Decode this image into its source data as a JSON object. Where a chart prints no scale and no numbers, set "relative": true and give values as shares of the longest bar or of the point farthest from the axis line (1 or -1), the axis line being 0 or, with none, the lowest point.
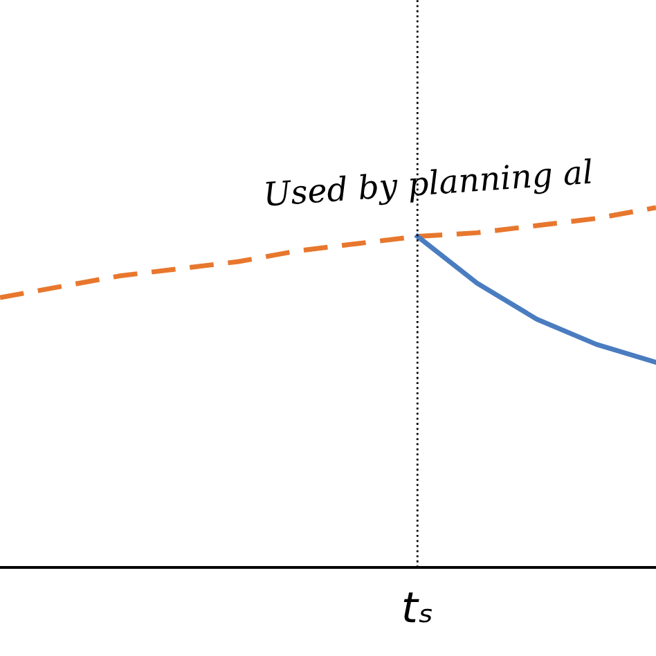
{
  "chart_data": {
    "type": "line",
    "relative": true,
    "legend": false,
    "marker": "none",
    "categories": [
      null,
      null,
      null,
      null,
      null,
      null,
      null,
      null,
      null,
      null,
      null,
      null
    ],
    "series": [
      {
        "color": "#e8772e",
        "line_style": "dashed",
        "values": [
          0.75,
          0.78,
          0.81,
          0.83,
          0.85,
          0.88,
          0.9,
          0.92,
          0.93,
          0.95,
          0.97,
          1
        ]
      },
      {
        "color": "#4a7cc0",
        "line_style": "solid",
        "values": [
          null,
          null,
          null,
          null,
          null,
          null,
          null,
          0.92,
          0.79,
          0.69,
          0.62,
          0.57
        ]
      }
    ],
    "annotations": [
      "tₛ",
      "Used by planning al"
    ]
  }
}
